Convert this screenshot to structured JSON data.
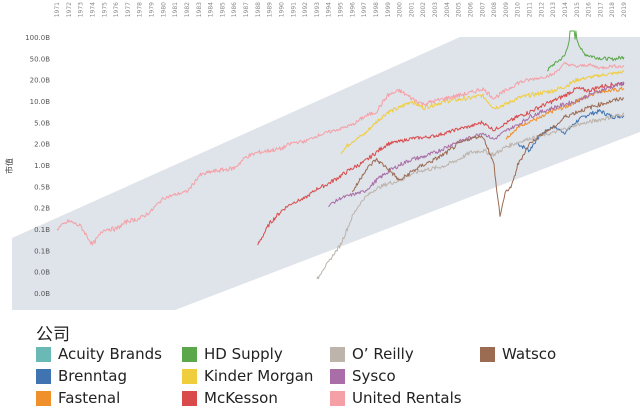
{
  "chart_data": {
    "type": "line",
    "ylabel": "市值",
    "y_scale": "log",
    "grid": false,
    "x_ticks": [
      "1971",
      "1972",
      "1973",
      "1974",
      "1975",
      "1976",
      "1977",
      "1978",
      "1979",
      "1980",
      "1981",
      "1982",
      "1983",
      "1984",
      "1985",
      "1986",
      "1987",
      "1988",
      "1989",
      "1990",
      "1991",
      "1992",
      "1993",
      "1994",
      "1995",
      "1996",
      "1997",
      "1998",
      "1999",
      "2000",
      "2001",
      "2002",
      "2003",
      "2004",
      "2005",
      "2006",
      "2007",
      "2008",
      "2009",
      "2010",
      "2011",
      "2012",
      "2013",
      "2014",
      "2015",
      "2016",
      "2017",
      "2018",
      "2019"
    ],
    "y_ticks": [
      {
        "label": "100.0B",
        "value": 100
      },
      {
        "label": "50.0B",
        "value": 50
      },
      {
        "label": "20.0B",
        "value": 20
      },
      {
        "label": "10.0B",
        "value": 10
      },
      {
        "label": "5.0B",
        "value": 5
      },
      {
        "label": "2.0B",
        "value": 2
      },
      {
        "label": "1.0B",
        "value": 1
      },
      {
        "label": "0.5B",
        "value": 0.5
      },
      {
        "label": "0.2B",
        "value": 0.2
      },
      {
        "label": "0.1B",
        "value": 0.1
      },
      {
        "label": "0.1B",
        "value": 0.05
      },
      {
        "label": "0.0B",
        "value": 0.02
      },
      {
        "label": "0.0B",
        "value": 0.01
      }
    ],
    "legend_title": "公司",
    "legend_position": "bottom",
    "series": [
      {
        "name": "Acuity Brands",
        "color": "#6ab9b4",
        "x": [],
        "y": []
      },
      {
        "name": "Brenntag",
        "color": "#3f74b0",
        "x": [
          2010,
          2011,
          2012,
          2013,
          2014,
          2015,
          2016,
          2017,
          2018,
          2019
        ],
        "y": [
          2.0,
          1.6,
          3.0,
          4.2,
          3.2,
          5.2,
          6.5,
          7.2,
          6.0,
          6.2
        ]
      },
      {
        "name": "Fastenal",
        "color": "#f0902a",
        "x": [
          2009,
          2010,
          2011,
          2012,
          2013,
          2014,
          2015,
          2016,
          2017,
          2018,
          2019
        ],
        "y": [
          2.5,
          4.0,
          5.2,
          5.8,
          7.3,
          8.2,
          10.0,
          12.0,
          14.0,
          14.0,
          15.0
        ]
      },
      {
        "name": "HD Supply",
        "color": "#5aa84a",
        "x": [
          2012.5,
          2013,
          2014,
          2014.5,
          2015,
          2015.5,
          2016,
          2017,
          2018,
          2019
        ],
        "y": [
          30.0,
          38.0,
          55.0,
          110.0,
          95.0,
          60.0,
          55.0,
          50.0,
          48.0,
          52.0
        ]
      },
      {
        "name": "Kinder Morgan",
        "color": "#f0cd3c",
        "x": [
          1995,
          1996,
          1997,
          1998,
          1999,
          2000,
          2001,
          2002,
          2003,
          2004,
          2005,
          2006,
          2007,
          2008,
          2009,
          2010,
          2011,
          2012,
          2013,
          2014,
          2015,
          2016,
          2017,
          2018,
          2019
        ],
        "y": [
          1.5,
          2.2,
          3.0,
          5.0,
          7.0,
          8.0,
          10.0,
          8.0,
          9.0,
          10.0,
          10.5,
          11.0,
          12.0,
          8.0,
          9.0,
          11.0,
          12.0,
          13.0,
          14.0,
          16.0,
          20.0,
          22.0,
          24.0,
          26.0,
          28.0
        ]
      },
      {
        "name": "McKesson",
        "color": "#d94b4b",
        "x": [
          1988,
          1989,
          1990,
          1991,
          1992,
          1993,
          1994,
          1995,
          1996,
          1997,
          1998,
          1999,
          2000,
          2001,
          2002,
          2003,
          2004,
          2005,
          2006,
          2007,
          2008,
          2009,
          2010,
          2011,
          2012,
          2013,
          2014,
          2015,
          2016,
          2017,
          2018,
          2019
        ],
        "y": [
          0.06,
          0.12,
          0.18,
          0.25,
          0.3,
          0.45,
          0.55,
          0.7,
          0.9,
          1.1,
          1.5,
          2.0,
          2.2,
          2.5,
          2.6,
          2.8,
          3.2,
          3.8,
          4.2,
          5.0,
          3.6,
          4.8,
          6.0,
          7.0,
          8.5,
          10.0,
          12.0,
          15.0,
          14.0,
          16.0,
          17.0,
          18.0
        ]
      },
      {
        "name": "O’ Reilly",
        "color": "#bdb4ac",
        "x": [
          1993,
          1993.5,
          1994,
          1994.5,
          1995,
          1996,
          1997,
          1998,
          1999,
          2000,
          2001,
          2002,
          2003,
          2004,
          2005,
          2006,
          2007,
          2008,
          2009,
          2010,
          2011,
          2012,
          2013,
          2014,
          2015,
          2016,
          2017,
          2018,
          2019
        ],
        "y": [
          0.015,
          0.022,
          0.03,
          0.045,
          0.06,
          0.15,
          0.3,
          0.45,
          0.55,
          0.6,
          0.75,
          0.85,
          0.9,
          1.0,
          1.2,
          1.5,
          1.6,
          1.4,
          1.8,
          2.1,
          2.5,
          2.8,
          3.2,
          3.8,
          4.5,
          5.0,
          5.5,
          6.0,
          6.5
        ]
      },
      {
        "name": "Sysco",
        "color": "#a96ea7",
        "x": [
          1994,
          1995,
          1996,
          1997,
          1998,
          1999,
          2000,
          2001,
          2002,
          2003,
          2004,
          2005,
          2006,
          2007,
          2008,
          2009,
          2010,
          2011,
          2012,
          2013,
          2014,
          2015,
          2016,
          2017,
          2018,
          2019
        ],
        "y": [
          0.22,
          0.3,
          0.35,
          0.4,
          0.6,
          0.8,
          1.0,
          1.2,
          1.3,
          1.5,
          1.8,
          2.2,
          2.6,
          3.2,
          2.4,
          3.5,
          4.5,
          6.0,
          7.0,
          8.0,
          9.0,
          10.0,
          12.0,
          14.0,
          16.0,
          18.0
        ]
      },
      {
        "name": "United Rentals",
        "color": "#f4a0a6",
        "x": [
          1971,
          1972,
          1973,
          1974,
          1975,
          1976,
          1977,
          1978,
          1979,
          1980,
          1981,
          1982,
          1983,
          1984,
          1985,
          1986,
          1987,
          1988,
          1989,
          1990,
          1991,
          1992,
          1993,
          1994,
          1995,
          1996,
          1997,
          1998,
          1999,
          2000,
          2001,
          2002,
          2003,
          2004,
          2005,
          2006,
          2007,
          2008,
          2009,
          2010,
          2011,
          2012,
          2013,
          2014,
          2015,
          2016,
          2017,
          2018,
          2019
        ],
        "y": [
          0.1,
          0.13,
          0.11,
          0.06,
          0.1,
          0.1,
          0.13,
          0.14,
          0.18,
          0.3,
          0.35,
          0.4,
          0.7,
          0.8,
          0.85,
          0.9,
          1.3,
          1.5,
          1.6,
          1.7,
          2.1,
          2.2,
          2.8,
          3.3,
          3.8,
          4.5,
          6.0,
          7.0,
          12.0,
          14.0,
          11.0,
          9.0,
          10.0,
          11.0,
          12.0,
          13.0,
          15.0,
          11.0,
          14.0,
          18.0,
          20.0,
          22.0,
          25.0,
          40.0,
          35.0,
          38.0,
          33.0,
          36.0,
          35.0
        ]
      },
      {
        "name": "Watsco",
        "color": "#9b6b52",
        "x": [
          1996,
          1997,
          1998,
          1999,
          2000,
          2001,
          2002,
          2003,
          2004,
          2005,
          2006,
          2007,
          2008,
          2008.5,
          2009,
          2009.5,
          2010,
          2011,
          2012,
          2013,
          2014,
          2015,
          2016,
          2017,
          2018,
          2019
        ],
        "y": [
          0.4,
          0.8,
          1.2,
          0.9,
          0.6,
          0.8,
          1.0,
          1.2,
          1.5,
          2.0,
          2.5,
          2.8,
          1.0,
          0.15,
          0.4,
          0.5,
          1.0,
          2.0,
          3.0,
          4.0,
          6.0,
          7.0,
          8.0,
          9.0,
          10.0,
          11.0
        ]
      }
    ]
  }
}
